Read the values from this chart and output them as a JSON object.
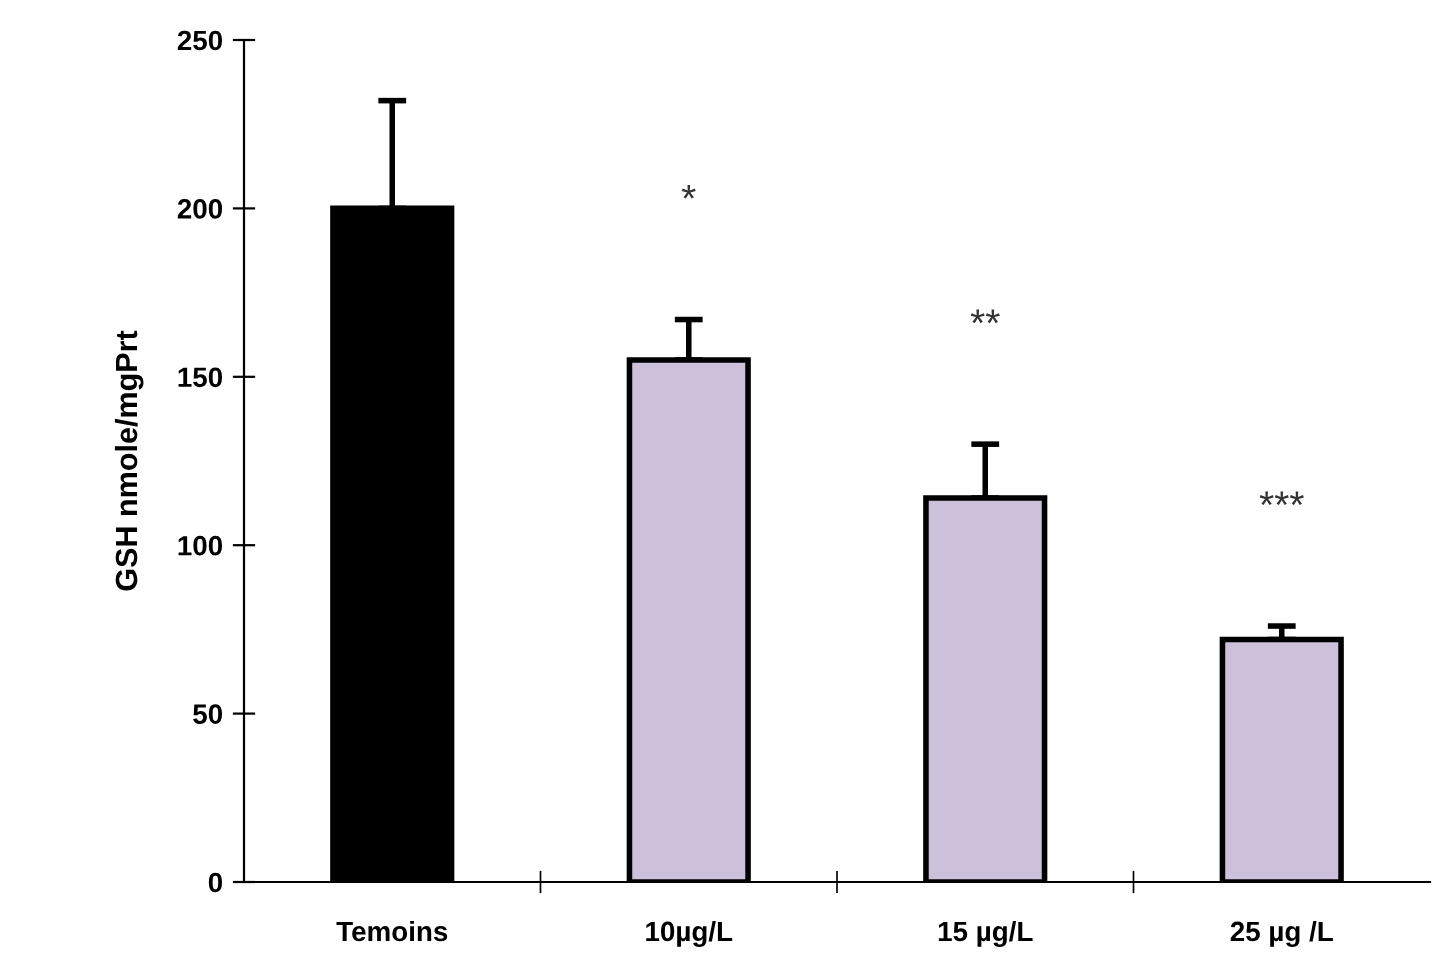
{
  "chart_data": {
    "type": "bar",
    "ylabel": "GSH nmole/mgPrt",
    "categories": [
      "Temoins",
      "10µg/L",
      "15 µg/L",
      "25 µg /L"
    ],
    "values": [
      200,
      155,
      114,
      72
    ],
    "errors": [
      32,
      12,
      16,
      4
    ],
    "colors": [
      "#000000",
      "#ccc0da",
      "#ccc0da",
      "#ccc0da"
    ],
    "ylim": [
      0,
      250
    ],
    "yticks": [
      0,
      50,
      100,
      150,
      200,
      250
    ],
    "grid": false,
    "annotations": [
      "*",
      "**",
      "***"
    ]
  }
}
